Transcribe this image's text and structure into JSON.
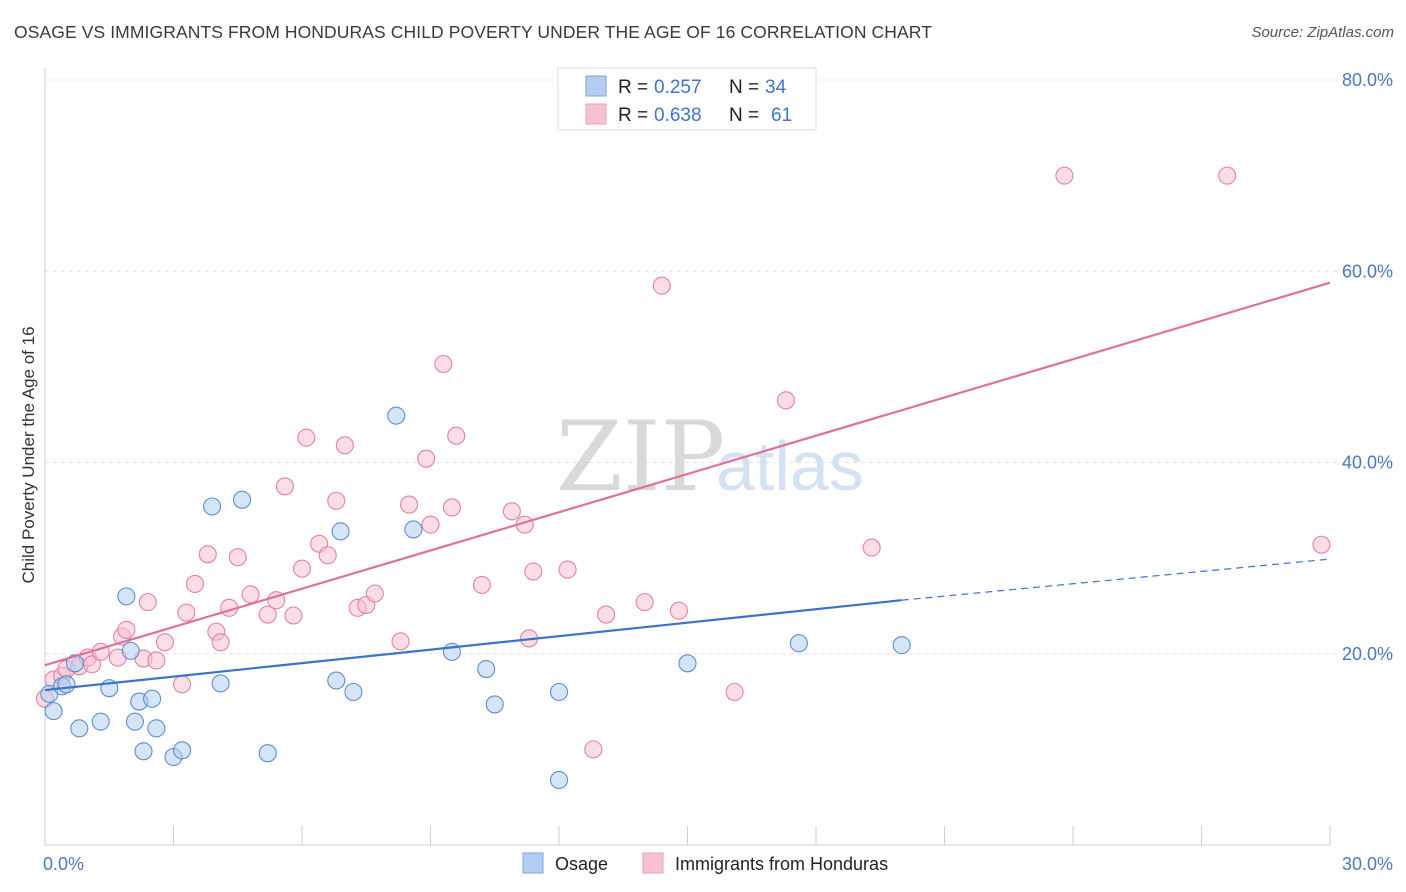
{
  "header": {
    "title": "OSAGE VS IMMIGRANTS FROM HONDURAS CHILD POVERTY UNDER THE AGE OF 16 CORRELATION CHART",
    "source": "Source: ZipAtlas.com"
  },
  "watermark": {
    "zip": "ZIP",
    "atlas": "atlas"
  },
  "legend": {
    "rows": [
      {
        "r_label": "R =",
        "r_value": "0.257",
        "n_label": "N =",
        "n_value": "34",
        "color": "#b3cdf0"
      },
      {
        "r_label": "R =",
        "r_value": "0.638",
        "n_label": "N =",
        "n_value": "61",
        "color": "#f6c1d1"
      }
    ]
  },
  "chart_data": {
    "type": "scatter",
    "title": "OSAGE VS IMMIGRANTS FROM HONDURAS CHILD POVERTY UNDER THE AGE OF 16 CORRELATION CHART",
    "xlabel": "",
    "ylabel": "Child Poverty Under the Age of 16",
    "xlim": [
      0,
      30
    ],
    "ylim": [
      0,
      80
    ],
    "x_tick_labels": [
      "0.0%",
      "30.0%"
    ],
    "y_ticks": [
      20,
      40,
      60,
      80
    ],
    "y_tick_labels": [
      "20.0%",
      "40.0%",
      "60.0%",
      "80.0%"
    ],
    "grid": true,
    "legend_position": "bottom-center",
    "series": [
      {
        "name": "Osage",
        "color": "#5b8fd6",
        "fill": "#b3cdf0",
        "trend": {
          "x0": 0,
          "y0": 16.2,
          "x1": 20,
          "y1": 25.6,
          "dash_to_x": 30,
          "dash_to_y": 29.9,
          "color": "#3b73cc"
        },
        "points": [
          [
            0.1,
            15.8
          ],
          [
            0.2,
            14.0
          ],
          [
            0.4,
            16.6
          ],
          [
            0.7,
            19.0
          ],
          [
            0.5,
            16.8
          ],
          [
            0.8,
            12.2
          ],
          [
            1.3,
            12.9
          ],
          [
            1.5,
            16.4
          ],
          [
            1.9,
            26.0
          ],
          [
            2.0,
            20.3
          ],
          [
            2.1,
            12.9
          ],
          [
            2.2,
            15.0
          ],
          [
            2.3,
            9.8
          ],
          [
            2.5,
            15.3
          ],
          [
            2.6,
            12.2
          ],
          [
            3.0,
            9.2
          ],
          [
            3.2,
            9.9
          ],
          [
            3.9,
            35.4
          ],
          [
            4.1,
            16.9
          ],
          [
            4.6,
            36.1
          ],
          [
            5.2,
            9.6
          ],
          [
            6.8,
            17.2
          ],
          [
            6.9,
            32.8
          ],
          [
            7.2,
            16.0
          ],
          [
            8.2,
            44.9
          ],
          [
            8.6,
            33.0
          ],
          [
            9.5,
            20.2
          ],
          [
            10.3,
            18.4
          ],
          [
            10.5,
            14.7
          ],
          [
            12.0,
            16.0
          ],
          [
            12.0,
            6.8
          ],
          [
            15.0,
            19.0
          ],
          [
            17.6,
            21.1
          ],
          [
            20.0,
            20.9
          ]
        ]
      },
      {
        "name": "Immigrants from Honduras",
        "color": "#e8819f",
        "fill": "#f6c1d1",
        "trend": {
          "x0": 0,
          "y0": 18.8,
          "x1": 30,
          "y1": 58.8,
          "color": "#e0709a"
        },
        "points": [
          [
            0.0,
            15.3
          ],
          [
            0.2,
            17.3
          ],
          [
            0.4,
            17.7
          ],
          [
            0.5,
            18.4
          ],
          [
            0.8,
            18.7
          ],
          [
            1.0,
            19.6
          ],
          [
            1.1,
            18.9
          ],
          [
            1.3,
            20.2
          ],
          [
            1.7,
            19.6
          ],
          [
            1.8,
            21.8
          ],
          [
            1.9,
            22.5
          ],
          [
            2.3,
            19.5
          ],
          [
            2.4,
            25.4
          ],
          [
            2.6,
            19.3
          ],
          [
            2.8,
            21.2
          ],
          [
            3.2,
            16.8
          ],
          [
            3.3,
            24.3
          ],
          [
            3.5,
            27.3
          ],
          [
            3.8,
            30.4
          ],
          [
            4.0,
            22.3
          ],
          [
            4.1,
            21.2
          ],
          [
            4.3,
            24.8
          ],
          [
            4.5,
            30.1
          ],
          [
            4.8,
            26.2
          ],
          [
            5.2,
            24.1
          ],
          [
            5.4,
            25.6
          ],
          [
            5.6,
            37.5
          ],
          [
            5.8,
            24.0
          ],
          [
            6.0,
            28.9
          ],
          [
            6.1,
            42.6
          ],
          [
            6.4,
            31.5
          ],
          [
            6.6,
            30.3
          ],
          [
            6.8,
            36.0
          ],
          [
            7.0,
            41.8
          ],
          [
            7.3,
            24.8
          ],
          [
            7.5,
            25.1
          ],
          [
            7.7,
            26.3
          ],
          [
            8.3,
            21.3
          ],
          [
            8.5,
            35.6
          ],
          [
            8.9,
            40.4
          ],
          [
            9.0,
            33.5
          ],
          [
            9.3,
            50.3
          ],
          [
            9.6,
            42.8
          ],
          [
            9.5,
            35.3
          ],
          [
            10.2,
            27.2
          ],
          [
            10.9,
            34.9
          ],
          [
            11.2,
            33.5
          ],
          [
            11.3,
            21.6
          ],
          [
            11.4,
            28.6
          ],
          [
            12.2,
            28.8
          ],
          [
            12.8,
            10.0
          ],
          [
            13.1,
            24.1
          ],
          [
            14.0,
            25.4
          ],
          [
            14.4,
            58.5
          ],
          [
            14.8,
            24.5
          ],
          [
            16.1,
            16.0
          ],
          [
            17.3,
            46.5
          ],
          [
            19.3,
            31.1
          ],
          [
            23.8,
            70.0
          ],
          [
            27.6,
            70.0
          ],
          [
            29.8,
            31.4
          ]
        ]
      }
    ]
  }
}
